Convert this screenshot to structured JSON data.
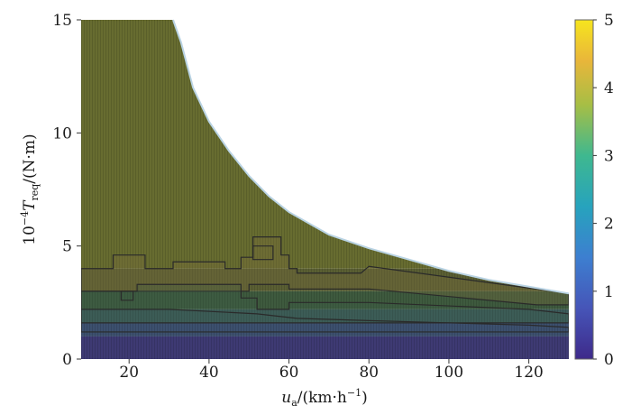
{
  "chart_data": {
    "type": "heatmap",
    "xlabel_main": "u",
    "xlabel_sub": "a",
    "xlabel_unit": "/(km·h",
    "xlabel_exp": "−1",
    "xlabel_close": ")",
    "ylabel_prefix": "10",
    "ylabel_exp": "−4",
    "ylabel_var": "T",
    "ylabel_sub": "req",
    "ylabel_unit": "/(N·m)",
    "xlim": [
      8,
      130
    ],
    "ylim": [
      0,
      15
    ],
    "x_ticks": [
      20,
      40,
      60,
      80,
      100,
      120
    ],
    "y_ticks": [
      0,
      5,
      10,
      15
    ],
    "colorbar": {
      "range": [
        0,
        5
      ],
      "ticks": [
        0,
        1,
        2,
        3,
        4,
        5
      ],
      "colormap": "parula"
    },
    "boundary": {
      "description_x_y": [
        [
          31,
          15
        ],
        [
          33,
          14
        ],
        [
          36,
          12
        ],
        [
          40,
          10.5
        ],
        [
          45,
          9.2
        ],
        [
          50,
          8.1
        ],
        [
          55,
          7.2
        ],
        [
          60,
          6.5
        ],
        [
          70,
          5.5
        ],
        [
          80,
          4.9
        ],
        [
          90,
          4.4
        ],
        [
          100,
          3.9
        ],
        [
          110,
          3.5
        ],
        [
          120,
          3.2
        ],
        [
          130,
          2.9
        ]
      ]
    },
    "regions": [
      {
        "value": 3.6,
        "color": "#676c30",
        "y_range": [
          4.0,
          15
        ]
      },
      {
        "value": 3.3,
        "color": "#5a5f33",
        "y_range": [
          3.0,
          4.0
        ]
      },
      {
        "value": 2.9,
        "color": "#3e5a3e",
        "y_range": [
          2.2,
          3.0
        ]
      },
      {
        "value": 2.3,
        "color": "#3d5b5a",
        "y_range": [
          1.6,
          2.2
        ]
      },
      {
        "value": 1.6,
        "color": "#3c506e",
        "y_range": [
          1.0,
          1.6
        ]
      },
      {
        "value": 0.8,
        "color": "#3e3a73",
        "y_range": [
          0,
          1.0
        ]
      }
    ]
  }
}
